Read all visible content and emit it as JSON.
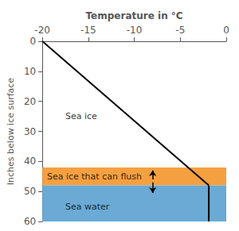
{
  "chart_data": {
    "type": "line",
    "x_label": "Temperature in °C",
    "y_label": "Inches below ice surface",
    "xlim": [
      -20,
      0
    ],
    "ylim": [
      60,
      0
    ],
    "xticks": [
      -20,
      -15,
      -10,
      -5,
      0
    ],
    "yticks": [
      0,
      10,
      20,
      30,
      40,
      50,
      60
    ],
    "grid": false,
    "series": [
      {
        "x": [
          -20,
          -1.9
        ],
        "values": [
          0,
          48
        ],
        "color": "#000000"
      },
      {
        "x": [
          -1.9,
          -1.9
        ],
        "values": [
          48,
          60
        ],
        "color": "#000000"
      }
    ],
    "bands": [
      {
        "from": 42,
        "to": 48,
        "color": "#F5A040"
      },
      {
        "from": 48,
        "to": 60,
        "color": "#6aaad4"
      }
    ],
    "annotations": [
      {
        "text": "Sea ice",
        "x": -17.5,
        "y": 25
      },
      {
        "text": "Sea ice that can flush",
        "x": -19.5,
        "y": 45.0
      },
      {
        "text": "Sea water",
        "x": -17.5,
        "y": 55
      }
    ],
    "arrows": [
      {
        "x": -8.0,
        "from": 46.0,
        "to": 43.0
      },
      {
        "x": -8.0,
        "from": 47.0,
        "to": 50.5
      }
    ],
    "background_color": "#ffffff"
  }
}
